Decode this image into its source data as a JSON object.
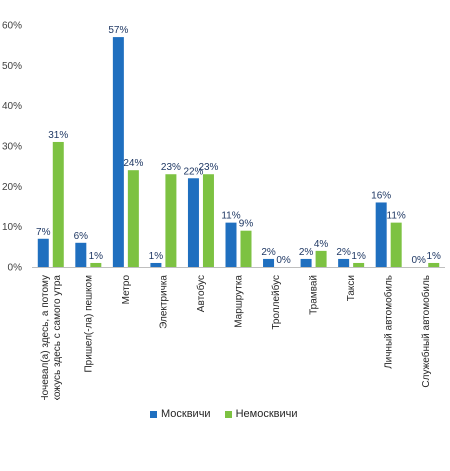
{
  "chart_data": {
    "type": "bar",
    "ylim": [
      0,
      60
    ],
    "yticks": [
      "0%",
      "10%",
      "20%",
      "30%",
      "40%",
      "50%",
      "60%"
    ],
    "grid": false,
    "legend_position": "bottom",
    "categories": [
      "Ночевал(а) здесь, а потому нахожусь здесь с самого утра",
      "Пришел(-ла) пешком",
      "Метро",
      "Электричка",
      "Автобус",
      "Маршрутка",
      "Троллейбус",
      "Трамвай",
      "Такси",
      "Личный автомобиль",
      "Служебный автомобиль"
    ],
    "series": [
      {
        "name": "Москвичи",
        "color": "#1f6fbf",
        "values": [
          7,
          6,
          57,
          1,
          22,
          11,
          2,
          2,
          2,
          16,
          0
        ],
        "labels": [
          "7%",
          "6%",
          "57%",
          "1%",
          "22%",
          "11%",
          "2%",
          "2%",
          "2%",
          "16%",
          "0%"
        ]
      },
      {
        "name": "Немосквичи",
        "color": "#7dc242",
        "values": [
          31,
          1,
          24,
          23,
          23,
          9,
          0,
          4,
          1,
          11,
          1
        ],
        "labels": [
          "31%",
          "1%",
          "24%",
          "23%",
          "23%",
          "9%",
          "0%",
          "4%",
          "1%",
          "11%",
          "1%"
        ]
      }
    ]
  }
}
